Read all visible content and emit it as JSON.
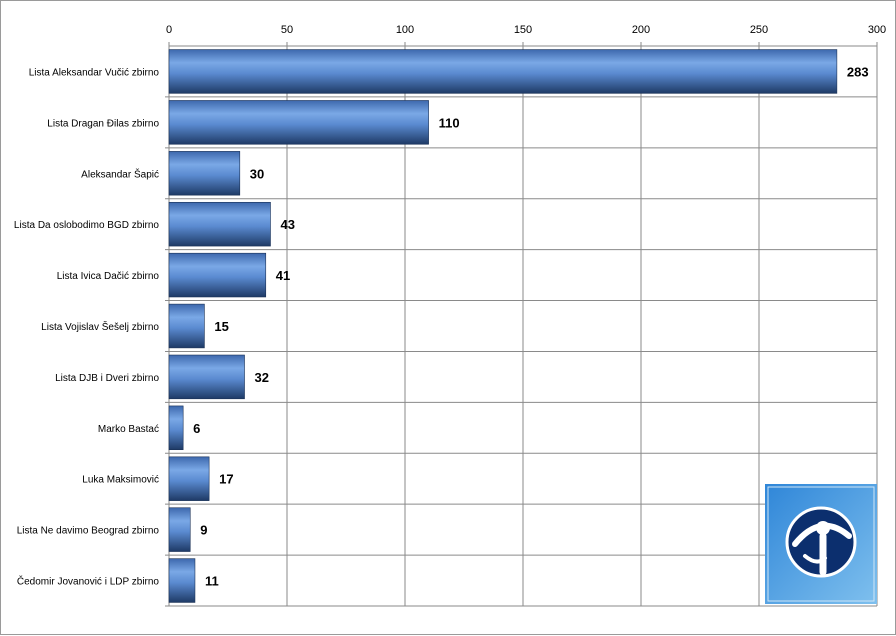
{
  "chart_data": {
    "type": "bar",
    "orientation": "horizontal",
    "title": "",
    "xlabel": "",
    "ylabel": "",
    "xlim": [
      0,
      300
    ],
    "x_ticks": [
      0,
      50,
      100,
      150,
      200,
      250,
      300
    ],
    "x_axis_position": "top",
    "grid": true,
    "legend": "none",
    "bar_color": "#4a7cc4",
    "categories": [
      "Lista Aleksandar  Vučić zbirno",
      "Lista Dragan  Đilas zbirno",
      "Aleksandar Šapić",
      "Lista Da oslobodimo BGD zbirno",
      "Lista Ivica Dačić zbirno",
      "Lista Vojislav Šešelj zbirno",
      "Lista DJB i Dveri zbirno",
      "Marko Bastać",
      "Luka Maksimović",
      "Lista Ne davimo Beograd zbirno",
      "Čedomir Jovanović i LDP zbirno"
    ],
    "values": [
      283,
      110,
      30,
      43,
      41,
      15,
      32,
      6,
      17,
      9,
      11
    ]
  },
  "logo": {
    "icon": "transparency-international-logo-icon",
    "bg_color": "#3d8fd6"
  }
}
